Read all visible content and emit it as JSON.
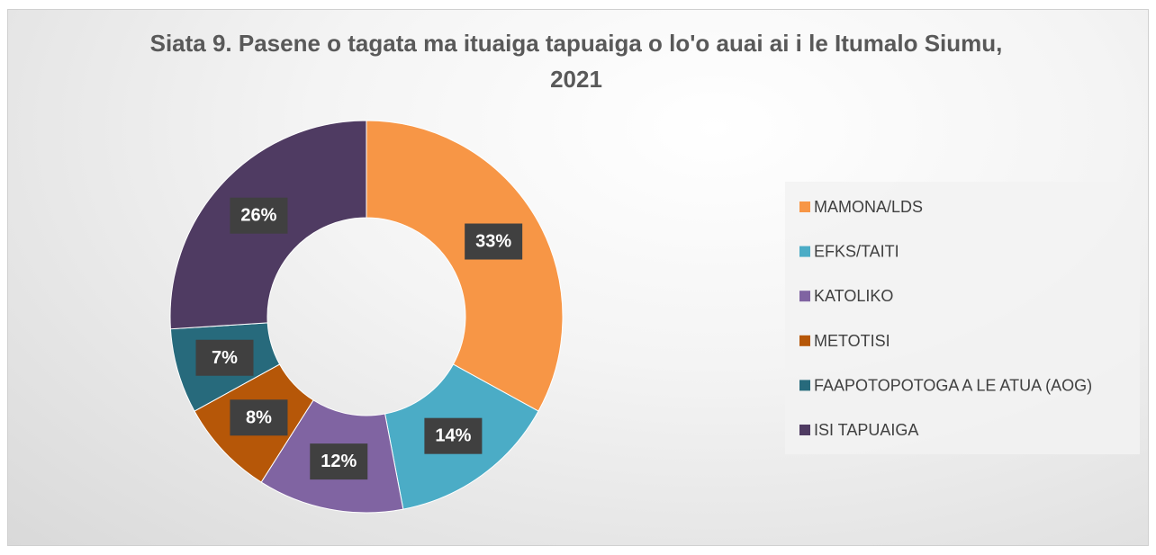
{
  "chart_data": {
    "type": "pie",
    "title": "Siata 9. Pasene o tagata ma ituaiga tapuaiga o lo'o auai ai i le Itumalo Siumu, 2021",
    "categories": [
      "MAMONA/LDS",
      "EFKS/TAITI",
      "KATOLIKO",
      "METOTISI",
      "FAAPOTOPOTOGA A LE ATUA (AOG)",
      "ISI TAPUAIGA"
    ],
    "values": [
      33,
      14,
      12,
      8,
      7,
      26
    ],
    "value_labels": [
      "33%",
      "14%",
      "12%",
      "8%",
      "7%",
      "26%"
    ],
    "colors": [
      "#f79646",
      "#4bacc6",
      "#8064a2",
      "#b65708",
      "#276a7c",
      "#4f3b62"
    ],
    "donut": true,
    "legend": "right"
  }
}
